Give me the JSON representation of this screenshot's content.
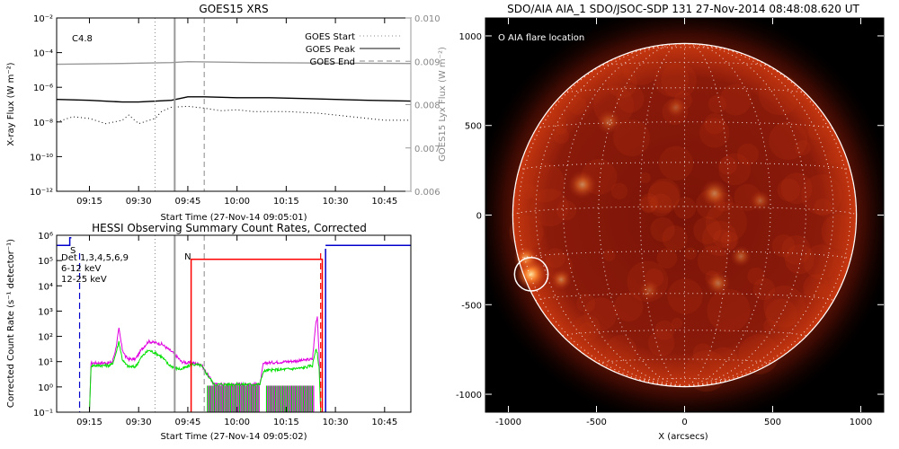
{
  "chart_data": [
    {
      "type": "line",
      "title": "GOES15 XRS",
      "xlabel": "Start Time (27-Nov-14 09:05:01)",
      "ylabel": "X-ray Flux (W m⁻²)",
      "y2label": "GOES15 Lyx Flux (W m⁻²)",
      "annotation": "C4.8",
      "x_ticks": [
        "09:15",
        "09:30",
        "09:45",
        "10:00",
        "10:15",
        "10:30",
        "10:45"
      ],
      "x_tick_minutes": [
        10,
        25,
        40,
        55,
        70,
        85,
        100
      ],
      "xlim": [
        0,
        108
      ],
      "ylim_log10": [
        -12,
        -2
      ],
      "y_ticks": [
        "10⁻¹²",
        "10⁻¹⁰",
        "10⁻⁸",
        "10⁻⁶",
        "10⁻⁴",
        "10⁻²"
      ],
      "y_tick_log10": [
        -12,
        -10,
        -8,
        -6,
        -4,
        -2
      ],
      "y2lim": [
        0.006,
        0.01
      ],
      "y2_ticks": [
        "0.006",
        "0.007",
        "0.008",
        "0.009",
        "0.010"
      ],
      "y2_tick_values": [
        0.006,
        0.007,
        0.008,
        0.009,
        0.01
      ],
      "legend": [
        {
          "label": "GOES Start",
          "style": "dotted"
        },
        {
          "label": "GOES Peak",
          "style": "solid"
        },
        {
          "label": "GOES End",
          "style": "dashed"
        }
      ],
      "markers_min": {
        "start": 30,
        "peak": 36,
        "end": 45
      },
      "series": [
        {
          "role": "long-channel",
          "color": "#000000",
          "style": "solid",
          "axis": "left",
          "x": [
            0,
            10,
            20,
            25,
            35,
            40,
            45,
            55,
            65,
            75,
            85,
            95,
            108
          ],
          "y_log10": [
            -6.7,
            -6.75,
            -6.85,
            -6.85,
            -6.75,
            -6.55,
            -6.55,
            -6.6,
            -6.6,
            -6.65,
            -6.7,
            -6.75,
            -6.8
          ]
        },
        {
          "role": "short-channel",
          "color": "#000000",
          "style": "dotted",
          "axis": "left",
          "x": [
            0,
            5,
            10,
            15,
            20,
            22,
            25,
            30,
            32,
            35,
            40,
            45,
            50,
            55,
            60,
            70,
            80,
            90,
            100,
            108
          ],
          "y_log10": [
            -8.0,
            -7.7,
            -7.8,
            -8.1,
            -7.9,
            -7.6,
            -8.1,
            -7.8,
            -7.4,
            -7.15,
            -7.1,
            -7.2,
            -7.35,
            -7.3,
            -7.4,
            -7.4,
            -7.5,
            -7.7,
            -7.9,
            -7.9
          ]
        },
        {
          "role": "lyman-alpha",
          "color": "#999999",
          "style": "solid",
          "axis": "right",
          "x": [
            0,
            20,
            35,
            40,
            60,
            80,
            108
          ],
          "y": [
            0.00893,
            0.00895,
            0.00897,
            0.00899,
            0.00897,
            0.00896,
            0.00895
          ]
        }
      ]
    },
    {
      "type": "line",
      "title": "HESSI Observing Summary Count Rates, Corrected",
      "xlabel": "Start Time (27-Nov-14 09:05:02)",
      "ylabel": "Corrected Count Rate (s⁻¹ detector⁻¹)",
      "x_ticks": [
        "09:15",
        "09:30",
        "09:45",
        "10:00",
        "10:15",
        "10:30",
        "10:45"
      ],
      "x_tick_minutes": [
        10,
        25,
        40,
        55,
        70,
        85,
        100
      ],
      "xlim": [
        0,
        108
      ],
      "ylim_log10": [
        -1,
        6
      ],
      "y_ticks": [
        "10⁻¹",
        "10⁰",
        "10¹",
        "10²",
        "10³",
        "10⁴",
        "10⁵",
        "10⁶"
      ],
      "y_tick_log10": [
        -1,
        0,
        1,
        2,
        3,
        4,
        5,
        6
      ],
      "legend": [
        {
          "label": "Det 1,3,4,5,6,9",
          "color": "#000000"
        },
        {
          "label": "6-12 keV",
          "color": "#e000e0"
        },
        {
          "label": "12-25 keV",
          "color": "#00e000"
        }
      ],
      "annotations": [
        {
          "text": "S",
          "color": "#0000cc"
        },
        {
          "text": "N",
          "color": "#ff0000"
        }
      ],
      "markers_min": {
        "goes_start": 30,
        "goes_peak": 36,
        "goes_end": 45
      },
      "series": [
        {
          "name": "6-12 keV",
          "color": "#e000e0",
          "x": [
            10,
            10.5,
            16,
            17,
            18,
            19,
            20,
            21,
            22,
            24,
            26,
            28,
            30,
            32,
            34,
            36,
            38,
            40,
            41,
            44,
            48,
            53,
            60,
            62,
            63,
            64,
            70,
            75,
            78,
            79,
            79.5,
            80,
            80.5
          ],
          "y_log10": [
            -1,
            0.95,
            0.95,
            1.0,
            1.5,
            2.3,
            1.5,
            1.2,
            1.1,
            1.1,
            1.5,
            1.8,
            1.75,
            1.7,
            1.5,
            1.3,
            1.0,
            0.95,
            0.95,
            0.9,
            0.1,
            0.1,
            0.1,
            0.1,
            0.9,
            0.95,
            1.0,
            1.05,
            1.1,
            2.5,
            2.8,
            1.4,
            -1
          ]
        },
        {
          "name": "12-25 keV",
          "color": "#00e000",
          "x": [
            10,
            10.5,
            16,
            17,
            18,
            19,
            20,
            21,
            22,
            24,
            26,
            28,
            30,
            32,
            34,
            36,
            38,
            40,
            41,
            44,
            48,
            53,
            60,
            62,
            63,
            64,
            70,
            75,
            78,
            79,
            79.5,
            80,
            80.5
          ],
          "y_log10": [
            -1,
            0.85,
            0.85,
            0.9,
            1.3,
            1.8,
            1.1,
            0.9,
            0.8,
            0.8,
            1.2,
            1.45,
            1.35,
            1.2,
            0.9,
            0.75,
            0.7,
            0.8,
            0.9,
            0.85,
            0.1,
            0.1,
            0.1,
            0.1,
            0.6,
            0.65,
            0.7,
            0.75,
            0.85,
            1.5,
            1.3,
            0.8,
            -1
          ]
        },
        {
          "name": "night/SAA flag (blue)",
          "color": "#0000cc",
          "x": [
            0,
            4,
            4,
            4.5
          ],
          "y_log10": [
            5.6,
            5.6,
            5.9,
            5.9
          ]
        },
        {
          "name": "night flag (blue, end)",
          "color": "#0000cc",
          "x": [
            82,
            108
          ],
          "y_log10": [
            5.6,
            5.6
          ]
        },
        {
          "name": "attenuator state (red)",
          "color": "#ff0000",
          "x": [
            41,
            41,
            81,
            81
          ],
          "y_log10": [
            -1,
            5.05,
            5.05,
            -1
          ]
        }
      ]
    },
    {
      "type": "heatmap",
      "title": "SDO/AIA AIA_1 SDO/JSOC-SDP 131 27-Nov-2014 08:48:08.620 UT",
      "xlabel": "X (arcsecs)",
      "ylabel": "",
      "x_ticks": [
        "-1000",
        "-500",
        "0",
        "500",
        "1000"
      ],
      "x_tick_values": [
        -1000,
        -500,
        0,
        500,
        1000
      ],
      "y_ticks": [
        "-1000",
        "-500",
        "0",
        "500",
        "1000"
      ],
      "y_tick_values": [
        -1000,
        -500,
        0,
        500,
        1000
      ],
      "xlim": [
        -1130,
        1130
      ],
      "ylim": [
        -1100,
        1100
      ],
      "legend": "O AIA flare location",
      "limb_radius_arcsec": 975,
      "flare_location_arcsec": [
        -870,
        -330
      ],
      "flare_circle_radius_arcsec": 95,
      "colormap": "SDO AIA 131 (red)",
      "bright_regions_arcsec": [
        [
          -870,
          -330,
          90,
          1.0
        ],
        [
          -900,
          -240,
          70,
          0.7
        ],
        [
          -700,
          -360,
          60,
          0.5
        ],
        [
          -580,
          170,
          80,
          0.55
        ],
        [
          170,
          120,
          80,
          0.5
        ],
        [
          190,
          -380,
          70,
          0.45
        ],
        [
          320,
          -230,
          60,
          0.4
        ],
        [
          430,
          80,
          60,
          0.35
        ],
        [
          -200,
          -420,
          60,
          0.3
        ],
        [
          -430,
          520,
          70,
          0.35
        ],
        [
          -50,
          600,
          60,
          0.3
        ]
      ]
    }
  ]
}
